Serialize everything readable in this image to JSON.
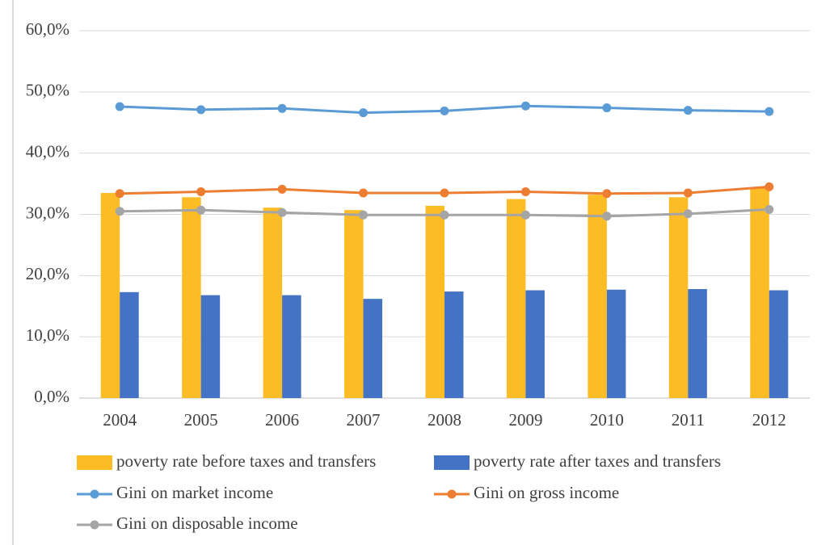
{
  "chart_data": {
    "type": "bar",
    "categories": [
      "2004",
      "2005",
      "2006",
      "2007",
      "2008",
      "2009",
      "2010",
      "2011",
      "2012"
    ],
    "series": [
      {
        "name": "poverty rate before taxes and transfers",
        "type": "bar",
        "color": "#fbbc26",
        "values": [
          33.5,
          32.8,
          31.1,
          30.7,
          31.4,
          32.5,
          33.2,
          32.8,
          34.3
        ]
      },
      {
        "name": "poverty rate after taxes and transfers",
        "type": "bar",
        "color": "#4472c4",
        "values": [
          17.3,
          16.8,
          16.8,
          16.2,
          17.4,
          17.6,
          17.7,
          17.8,
          17.6
        ]
      },
      {
        "name": "Gini on market income",
        "type": "line",
        "color": "#5b9bd5",
        "values": [
          47.6,
          47.1,
          47.3,
          46.6,
          46.9,
          47.7,
          47.4,
          47.0,
          46.8
        ]
      },
      {
        "name": "Gini on gross income",
        "type": "line",
        "color": "#ed7d31",
        "values": [
          33.4,
          33.7,
          34.1,
          33.5,
          33.5,
          33.7,
          33.4,
          33.5,
          34.5
        ]
      },
      {
        "name": "Gini on disposable income",
        "type": "line",
        "color": "#a5a5a5",
        "values": [
          30.5,
          30.7,
          30.3,
          29.9,
          29.9,
          29.9,
          29.7,
          30.1,
          30.8
        ]
      }
    ],
    "ylim": [
      0,
      60
    ],
    "yticks": [
      {
        "value": 0,
        "label": "0,0%"
      },
      {
        "value": 10,
        "label": "10,0%"
      },
      {
        "value": 20,
        "label": "20,0%"
      },
      {
        "value": 30,
        "label": "30,0%"
      },
      {
        "value": 40,
        "label": "40,0%"
      },
      {
        "value": 50,
        "label": "50,0%"
      },
      {
        "value": 60,
        "label": "60,0%"
      }
    ],
    "grid": true,
    "legend": "bottom"
  }
}
